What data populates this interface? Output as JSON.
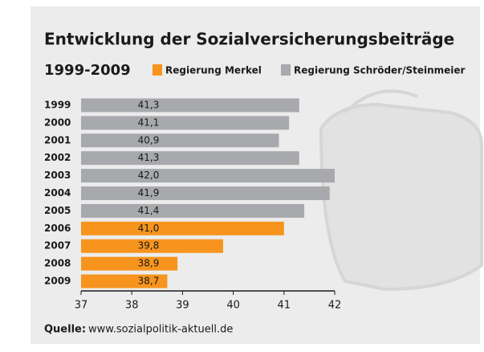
{
  "chart_data": {
    "type": "bar",
    "orientation": "horizontal",
    "title": "Entwicklung der Sozialversicherungsbeiträge",
    "subtitle": "1999-2009",
    "categories": [
      "1999",
      "2000",
      "2001",
      "2002",
      "2003",
      "2004",
      "2005",
      "2006",
      "2007",
      "2008",
      "2009"
    ],
    "series": [
      {
        "name": "Regierung Merkel",
        "color": "#f7941d",
        "values": [
          null,
          null,
          null,
          null,
          null,
          null,
          null,
          41.0,
          39.8,
          38.9,
          38.7
        ],
        "value_labels": [
          null,
          null,
          null,
          null,
          null,
          null,
          null,
          "41,0",
          "39,8",
          "38,9",
          "38,7"
        ]
      },
      {
        "name": "Regierung Schröder/Steinmeier",
        "color": "#a7a9ac",
        "values": [
          41.3,
          41.1,
          40.9,
          41.3,
          42.0,
          41.9,
          41.4,
          null,
          null,
          null,
          null
        ],
        "value_labels": [
          "41,3",
          "41,1",
          "40,9",
          "41,3",
          "42,0",
          "41,9",
          "41,4",
          null,
          null,
          null,
          null
        ]
      }
    ],
    "xlim": [
      37,
      42
    ],
    "xticks": [
      37,
      38,
      39,
      40,
      41,
      42
    ],
    "source_label": "Quelle:",
    "source": "www.sozialpolitik-aktuell.de"
  }
}
